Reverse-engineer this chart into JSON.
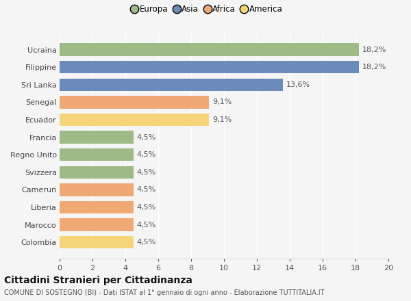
{
  "categories": [
    "Colombia",
    "Marocco",
    "Liberia",
    "Camerun",
    "Svizzera",
    "Regno Unito",
    "Francia",
    "Ecuador",
    "Senegal",
    "Sri Lanka",
    "Filippine",
    "Ucraina"
  ],
  "values": [
    4.5,
    4.5,
    4.5,
    4.5,
    4.5,
    4.5,
    4.5,
    9.1,
    9.1,
    13.6,
    18.2,
    18.2
  ],
  "labels": [
    "4,5%",
    "4,5%",
    "4,5%",
    "4,5%",
    "4,5%",
    "4,5%",
    "4,5%",
    "9,1%",
    "9,1%",
    "13,6%",
    "18,2%",
    "18,2%"
  ],
  "colors": [
    "#f5d57a",
    "#f0a875",
    "#f0a875",
    "#f0a875",
    "#9eba87",
    "#9eba87",
    "#9eba87",
    "#f5d57a",
    "#f0a875",
    "#6b8cba",
    "#6b8cba",
    "#9eba87"
  ],
  "legend": [
    {
      "label": "Europa",
      "color": "#9eba87"
    },
    {
      "label": "Asia",
      "color": "#6b8cba"
    },
    {
      "label": "Africa",
      "color": "#f0a875"
    },
    {
      "label": "America",
      "color": "#f5d57a"
    }
  ],
  "xlim": [
    0,
    20
  ],
  "xticks": [
    0,
    2,
    4,
    6,
    8,
    10,
    12,
    14,
    16,
    18,
    20
  ],
  "title": "Cittadini Stranieri per Cittadinanza",
  "subtitle": "COMUNE DI SOSTEGNO (BI) - Dati ISTAT al 1° gennaio di ogni anno - Elaborazione TUTTITALIA.IT",
  "background_color": "#f5f5f5",
  "grid_color": "#ffffff",
  "bar_height": 0.72,
  "label_fontsize": 8,
  "tick_fontsize": 8,
  "legend_fontsize": 8.5,
  "title_fontsize": 10,
  "subtitle_fontsize": 7
}
